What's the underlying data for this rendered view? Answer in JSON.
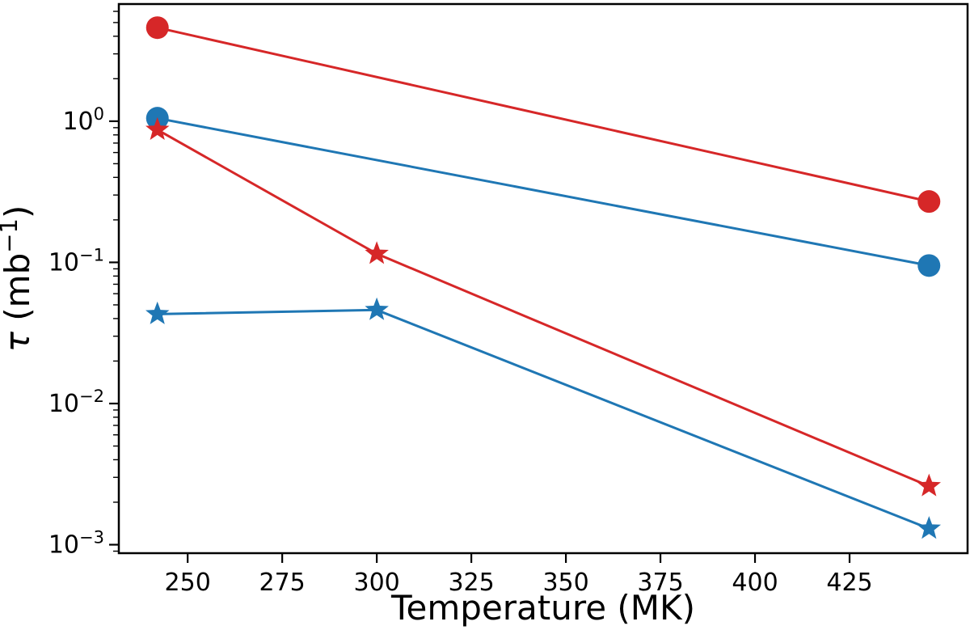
{
  "chart_data": {
    "type": "line",
    "title": "",
    "xlabel": "Temperature (MK)",
    "ylabel": "τ (mb⁻¹)",
    "ylabel_parts": {
      "symbol": "τ",
      "pre": " (mb",
      "sup": "−1",
      "post": ")"
    },
    "axes": {
      "y_scale": "log",
      "grid": false,
      "xlim": [
        231.8,
        456.2
      ],
      "ylog_lim": [
        -3.06,
        0.83
      ],
      "x_ticks": [
        250,
        275,
        300,
        325,
        350,
        375,
        400,
        425
      ],
      "y_ticks": [
        {
          "label": "10⁰",
          "mantissa": "10",
          "exponent": "0",
          "value": 1
        },
        {
          "label": "10⁻¹",
          "mantissa": "10",
          "exponent": "−1",
          "value": 0.1
        },
        {
          "label": "10⁻²",
          "mantissa": "10",
          "exponent": "−2",
          "value": 0.01
        },
        {
          "label": "10⁻³",
          "mantissa": "10",
          "exponent": "−3",
          "value": 0.001
        }
      ]
    },
    "legend": "none",
    "colors": {
      "red": "#d62728",
      "blue": "#1f77b4",
      "frame": "#000000"
    },
    "series": [
      {
        "name": "red-circles",
        "marker": "circle",
        "color": "#d62728",
        "x": [
          242,
          446
        ],
        "y": [
          4.6,
          0.27
        ]
      },
      {
        "name": "blue-circles",
        "marker": "circle",
        "color": "#1f77b4",
        "x": [
          242,
          446
        ],
        "y": [
          1.05,
          0.095
        ]
      },
      {
        "name": "red-stars",
        "marker": "star",
        "color": "#d62728",
        "x": [
          242,
          300,
          446
        ],
        "y": [
          0.87,
          0.115,
          0.0026
        ]
      },
      {
        "name": "blue-stars",
        "marker": "star",
        "color": "#1f77b4",
        "x": [
          242,
          300,
          446
        ],
        "y": [
          0.043,
          0.046,
          0.0013
        ]
      }
    ]
  }
}
